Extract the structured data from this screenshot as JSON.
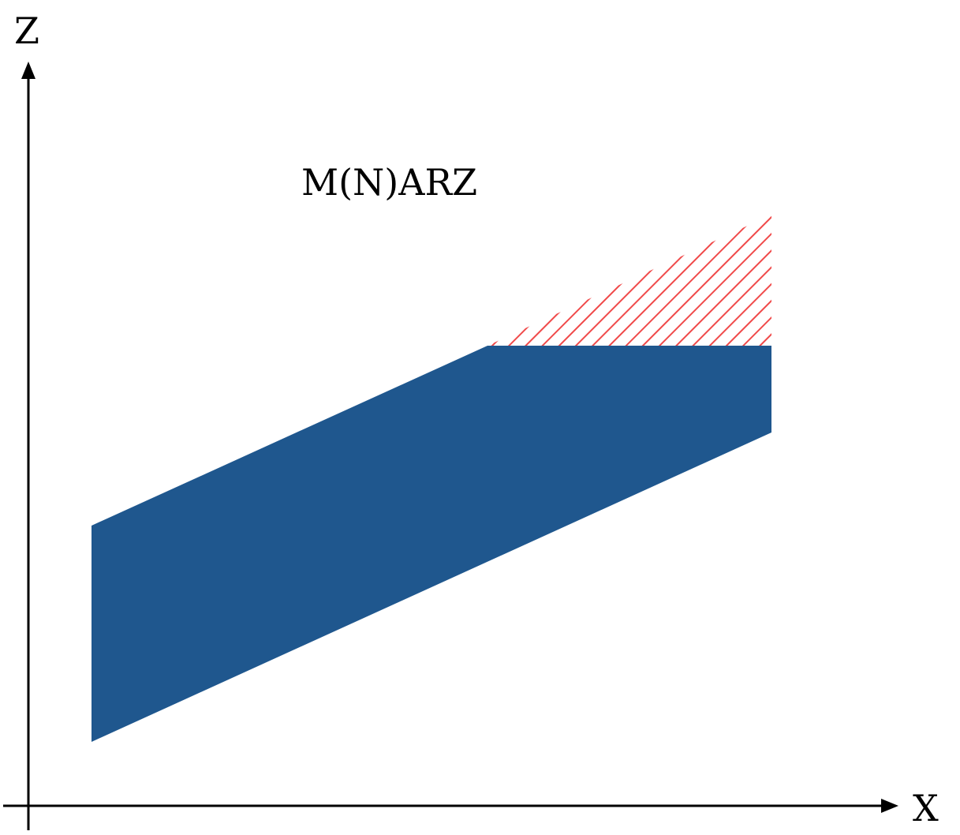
{
  "diagram": {
    "axes": {
      "x_label": "X",
      "z_label": "Z"
    },
    "region_label": "M(N)ARZ",
    "colors": {
      "band_fill": "#1f578e",
      "hatch_stroke": "#f04a4a",
      "axis": "#000000",
      "background": "#ffffff"
    }
  }
}
